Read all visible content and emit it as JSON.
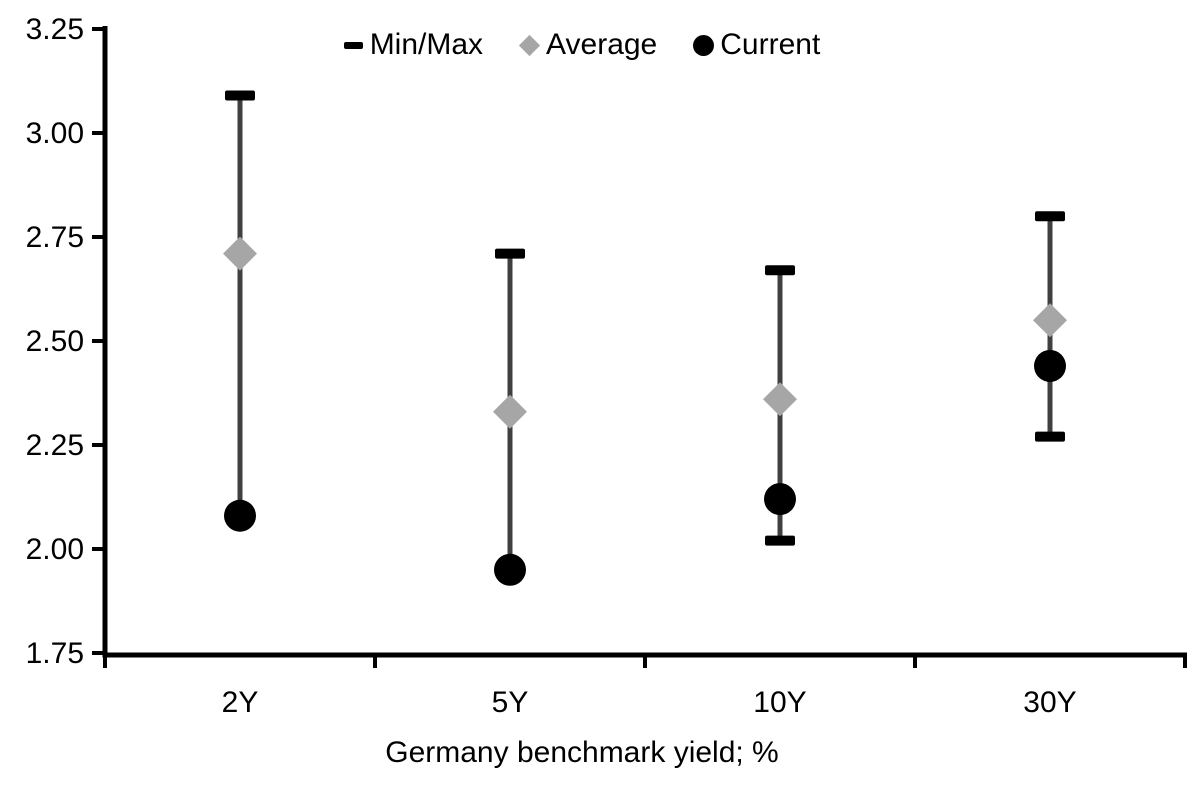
{
  "chart_data": {
    "type": "scatter",
    "subtype": "min-max-range-with-markers",
    "title": "",
    "xlabel": "Germany benchmark yield; %",
    "ylabel": "",
    "categories": [
      "2Y",
      "5Y",
      "10Y",
      "30Y"
    ],
    "series": [
      {
        "name": "Min/Max",
        "marker": "dash-cap",
        "min": [
          2.08,
          1.95,
          2.02,
          2.27
        ],
        "max": [
          3.09,
          2.71,
          2.67,
          2.8
        ]
      },
      {
        "name": "Average",
        "marker": "diamond",
        "values": [
          2.71,
          2.33,
          2.36,
          2.55
        ]
      },
      {
        "name": "Current",
        "marker": "circle",
        "values": [
          2.08,
          1.95,
          2.12,
          2.44
        ]
      }
    ],
    "ylim": [
      1.75,
      3.25
    ],
    "y_ticks": [
      3.25,
      3.0,
      2.75,
      2.5,
      2.25,
      2.0,
      1.75
    ],
    "y_tick_labels": [
      "3.25",
      "3.00",
      "2.75",
      "2.50",
      "2.25",
      "2.00",
      "1.75"
    ],
    "grid": false,
    "legend_position": "top-center",
    "colors": {
      "cap": "#000000",
      "whisker": "#404040",
      "average": "#a6a6a6",
      "current": "#000000",
      "axis": "#000000",
      "text": "#000000",
      "background": "#ffffff"
    }
  },
  "legend": {
    "items": [
      {
        "label": "Min/Max",
        "marker": "dash"
      },
      {
        "label": "Average",
        "marker": "diamond"
      },
      {
        "label": "Current",
        "marker": "circle"
      }
    ]
  }
}
